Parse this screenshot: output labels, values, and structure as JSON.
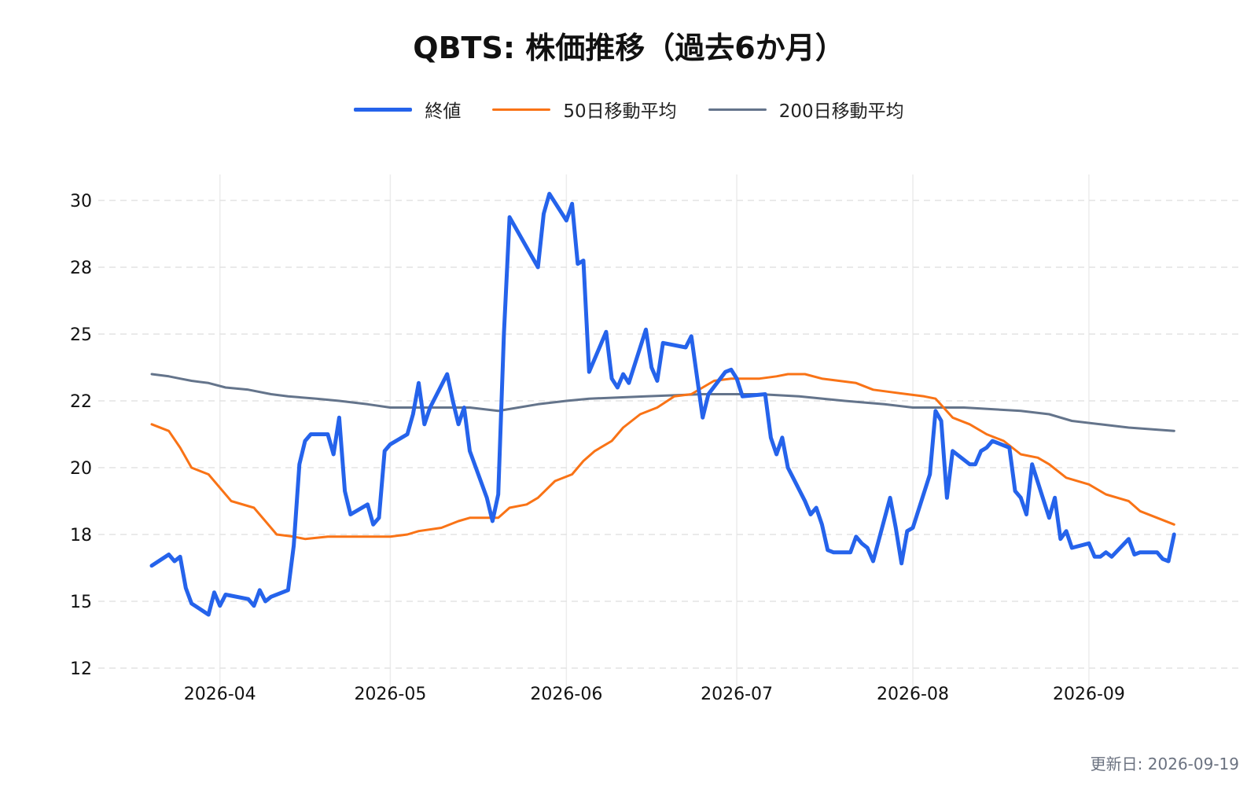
{
  "chart_data": {
    "type": "line",
    "title": "QBTS: 株価推移（過去6か月）",
    "xlabel": "",
    "ylabel": "",
    "x_tick_labels": [
      "2026-04",
      "2026-05",
      "2026-06",
      "2026-07",
      "2026-08",
      "2026-09"
    ],
    "x_ticks": [
      "2026-04-01",
      "2026-05-01",
      "2026-06-01",
      "2026-07-01",
      "2026-08-01",
      "2026-09-01"
    ],
    "x_range": [
      "2026-03-20",
      "2026-09-19"
    ],
    "y_ticks": [
      12,
      15,
      18,
      20,
      22,
      25,
      28,
      30
    ],
    "y_tick_labels": [
      "12",
      "15",
      "18",
      "20",
      "22",
      "25",
      "28",
      "30"
    ],
    "ylim": [
      12,
      30
    ],
    "grid": true,
    "legend": "top",
    "series": [
      {
        "name": "終値",
        "color": "#2563eb",
        "points": [
          [
            "2026-03-20",
            16.6
          ],
          [
            "2026-03-23",
            17.1
          ],
          [
            "2026-03-24",
            16.8
          ],
          [
            "2026-03-25",
            17.0
          ],
          [
            "2026-03-26",
            15.6
          ],
          [
            "2026-03-27",
            14.9
          ],
          [
            "2026-03-30",
            14.4
          ],
          [
            "2026-03-31",
            15.4
          ],
          [
            "2026-04-01",
            14.8
          ],
          [
            "2026-04-02",
            15.3
          ],
          [
            "2026-04-06",
            15.1
          ],
          [
            "2026-04-07",
            14.8
          ],
          [
            "2026-04-08",
            15.5
          ],
          [
            "2026-04-09",
            15.0
          ],
          [
            "2026-04-10",
            15.2
          ],
          [
            "2026-04-13",
            15.5
          ],
          [
            "2026-04-14",
            17.5
          ],
          [
            "2026-04-15",
            20.1
          ],
          [
            "2026-04-16",
            20.8
          ],
          [
            "2026-04-17",
            21.0
          ],
          [
            "2026-04-20",
            21.0
          ],
          [
            "2026-04-21",
            20.4
          ],
          [
            "2026-04-22",
            21.5
          ],
          [
            "2026-04-23",
            19.3
          ],
          [
            "2026-04-24",
            18.6
          ],
          [
            "2026-04-27",
            18.9
          ],
          [
            "2026-04-28",
            18.3
          ],
          [
            "2026-04-29",
            18.5
          ],
          [
            "2026-04-30",
            20.5
          ],
          [
            "2026-05-01",
            20.7
          ],
          [
            "2026-05-04",
            21.0
          ],
          [
            "2026-05-05",
            21.6
          ],
          [
            "2026-05-06",
            22.8
          ],
          [
            "2026-05-07",
            21.3
          ],
          [
            "2026-05-08",
            21.8
          ],
          [
            "2026-05-11",
            23.2
          ],
          [
            "2026-05-12",
            22.0
          ],
          [
            "2026-05-13",
            21.3
          ],
          [
            "2026-05-14",
            21.8
          ],
          [
            "2026-05-15",
            20.5
          ],
          [
            "2026-05-18",
            19.1
          ],
          [
            "2026-05-19",
            18.4
          ],
          [
            "2026-05-20",
            19.2
          ],
          [
            "2026-05-21",
            25.0
          ],
          [
            "2026-05-22",
            29.5
          ],
          [
            "2026-05-27",
            28.0
          ],
          [
            "2026-05-28",
            29.6
          ],
          [
            "2026-05-29",
            30.2
          ],
          [
            "2026-06-01",
            29.4
          ],
          [
            "2026-06-02",
            29.9
          ],
          [
            "2026-06-03",
            28.1
          ],
          [
            "2026-06-04",
            28.2
          ],
          [
            "2026-06-05",
            23.3
          ],
          [
            "2026-06-08",
            25.1
          ],
          [
            "2026-06-09",
            23.0
          ],
          [
            "2026-06-10",
            22.6
          ],
          [
            "2026-06-11",
            23.2
          ],
          [
            "2026-06-12",
            22.8
          ],
          [
            "2026-06-15",
            25.2
          ],
          [
            "2026-06-16",
            23.5
          ],
          [
            "2026-06-17",
            22.9
          ],
          [
            "2026-06-18",
            24.6
          ],
          [
            "2026-06-22",
            24.4
          ],
          [
            "2026-06-23",
            24.9
          ],
          [
            "2026-06-25",
            21.5
          ],
          [
            "2026-06-26",
            22.3
          ],
          [
            "2026-06-29",
            23.3
          ],
          [
            "2026-06-30",
            23.4
          ],
          [
            "2026-07-01",
            23.0
          ],
          [
            "2026-07-02",
            22.2
          ],
          [
            "2026-07-06",
            22.3
          ],
          [
            "2026-07-07",
            20.9
          ],
          [
            "2026-07-08",
            20.4
          ],
          [
            "2026-07-09",
            20.9
          ],
          [
            "2026-07-10",
            20.0
          ],
          [
            "2026-07-13",
            19.0
          ],
          [
            "2026-07-14",
            18.6
          ],
          [
            "2026-07-15",
            18.8
          ],
          [
            "2026-07-16",
            18.3
          ],
          [
            "2026-07-17",
            17.3
          ],
          [
            "2026-07-18",
            17.2
          ],
          [
            "2026-07-21",
            17.2
          ],
          [
            "2026-07-22",
            17.9
          ],
          [
            "2026-07-23",
            17.6
          ],
          [
            "2026-07-24",
            17.4
          ],
          [
            "2026-07-25",
            16.8
          ],
          [
            "2026-07-28",
            19.1
          ],
          [
            "2026-07-29",
            18.2
          ],
          [
            "2026-07-30",
            16.7
          ],
          [
            "2026-07-31",
            18.1
          ],
          [
            "2026-08-01",
            18.2
          ],
          [
            "2026-08-04",
            19.8
          ],
          [
            "2026-08-05",
            21.7
          ],
          [
            "2026-08-06",
            21.4
          ],
          [
            "2026-08-07",
            19.1
          ],
          [
            "2026-08-08",
            20.5
          ],
          [
            "2026-08-11",
            20.1
          ],
          [
            "2026-08-12",
            20.1
          ],
          [
            "2026-08-13",
            20.5
          ],
          [
            "2026-08-14",
            20.6
          ],
          [
            "2026-08-15",
            20.8
          ],
          [
            "2026-08-18",
            20.6
          ],
          [
            "2026-08-19",
            19.3
          ],
          [
            "2026-08-20",
            19.1
          ],
          [
            "2026-08-21",
            18.6
          ],
          [
            "2026-08-22",
            20.1
          ],
          [
            "2026-08-25",
            18.5
          ],
          [
            "2026-08-26",
            19.1
          ],
          [
            "2026-08-27",
            17.8
          ],
          [
            "2026-08-28",
            18.1
          ],
          [
            "2026-08-29",
            17.4
          ],
          [
            "2026-09-01",
            17.6
          ],
          [
            "2026-09-02",
            17.0
          ],
          [
            "2026-09-03",
            17.0
          ],
          [
            "2026-09-04",
            17.2
          ],
          [
            "2026-09-05",
            17.0
          ],
          [
            "2026-09-08",
            17.8
          ],
          [
            "2026-09-09",
            17.1
          ],
          [
            "2026-09-10",
            17.2
          ],
          [
            "2026-09-13",
            17.2
          ],
          [
            "2026-09-14",
            16.9
          ],
          [
            "2026-09-15",
            16.8
          ],
          [
            "2026-09-16",
            18.0
          ]
        ]
      },
      {
        "name": "50日移動平均",
        "color": "#f97316",
        "points": [
          [
            "2026-03-20",
            21.3
          ],
          [
            "2026-03-23",
            21.1
          ],
          [
            "2026-03-25",
            20.6
          ],
          [
            "2026-03-27",
            20.0
          ],
          [
            "2026-03-30",
            19.8
          ],
          [
            "2026-04-03",
            19.0
          ],
          [
            "2026-04-07",
            18.8
          ],
          [
            "2026-04-09",
            18.4
          ],
          [
            "2026-04-11",
            18.0
          ],
          [
            "2026-04-14",
            17.9
          ],
          [
            "2026-04-16",
            17.8
          ],
          [
            "2026-04-20",
            17.9
          ],
          [
            "2026-04-24",
            17.9
          ],
          [
            "2026-04-28",
            17.9
          ],
          [
            "2026-05-01",
            17.9
          ],
          [
            "2026-05-04",
            18.0
          ],
          [
            "2026-05-06",
            18.1
          ],
          [
            "2026-05-10",
            18.2
          ],
          [
            "2026-05-13",
            18.4
          ],
          [
            "2026-05-15",
            18.5
          ],
          [
            "2026-05-19",
            18.5
          ],
          [
            "2026-05-20",
            18.5
          ],
          [
            "2026-05-22",
            18.8
          ],
          [
            "2026-05-25",
            18.9
          ],
          [
            "2026-05-27",
            19.1
          ],
          [
            "2026-05-30",
            19.6
          ],
          [
            "2026-06-02",
            19.8
          ],
          [
            "2026-06-04",
            20.2
          ],
          [
            "2026-06-06",
            20.5
          ],
          [
            "2026-06-09",
            20.8
          ],
          [
            "2026-06-11",
            21.2
          ],
          [
            "2026-06-14",
            21.6
          ],
          [
            "2026-06-17",
            21.8
          ],
          [
            "2026-06-20",
            22.2
          ],
          [
            "2026-06-23",
            22.3
          ],
          [
            "2026-06-25",
            22.6
          ],
          [
            "2026-06-27",
            22.9
          ],
          [
            "2026-06-30",
            23.0
          ],
          [
            "2026-07-02",
            23.0
          ],
          [
            "2026-07-05",
            23.0
          ],
          [
            "2026-07-08",
            23.1
          ],
          [
            "2026-07-10",
            23.2
          ],
          [
            "2026-07-13",
            23.2
          ],
          [
            "2026-07-16",
            23.0
          ],
          [
            "2026-07-19",
            22.9
          ],
          [
            "2026-07-22",
            22.8
          ],
          [
            "2026-07-25",
            22.5
          ],
          [
            "2026-07-28",
            22.4
          ],
          [
            "2026-07-31",
            22.3
          ],
          [
            "2026-08-03",
            22.2
          ],
          [
            "2026-08-05",
            22.1
          ],
          [
            "2026-08-08",
            21.5
          ],
          [
            "2026-08-11",
            21.3
          ],
          [
            "2026-08-14",
            21.0
          ],
          [
            "2026-08-17",
            20.8
          ],
          [
            "2026-08-20",
            20.4
          ],
          [
            "2026-08-23",
            20.3
          ],
          [
            "2026-08-25",
            20.1
          ],
          [
            "2026-08-28",
            19.7
          ],
          [
            "2026-09-01",
            19.5
          ],
          [
            "2026-09-04",
            19.2
          ],
          [
            "2026-09-08",
            19.0
          ],
          [
            "2026-09-10",
            18.7
          ],
          [
            "2026-09-13",
            18.5
          ],
          [
            "2026-09-16",
            18.3
          ]
        ]
      },
      {
        "name": "200日移動平均",
        "color": "#64748b",
        "points": [
          [
            "2026-03-20",
            23.2
          ],
          [
            "2026-03-23",
            23.1
          ],
          [
            "2026-03-25",
            23.0
          ],
          [
            "2026-03-27",
            22.9
          ],
          [
            "2026-03-30",
            22.8
          ],
          [
            "2026-04-02",
            22.6
          ],
          [
            "2026-04-06",
            22.5
          ],
          [
            "2026-04-10",
            22.3
          ],
          [
            "2026-04-13",
            22.2
          ],
          [
            "2026-04-18",
            22.1
          ],
          [
            "2026-04-22",
            22.0
          ],
          [
            "2026-04-27",
            21.9
          ],
          [
            "2026-05-01",
            21.8
          ],
          [
            "2026-05-08",
            21.8
          ],
          [
            "2026-05-15",
            21.8
          ],
          [
            "2026-05-20",
            21.7
          ],
          [
            "2026-05-27",
            21.9
          ],
          [
            "2026-06-01",
            22.0
          ],
          [
            "2026-06-05",
            22.1
          ],
          [
            "2026-06-15",
            22.2
          ],
          [
            "2026-06-25",
            22.3
          ],
          [
            "2026-07-05",
            22.3
          ],
          [
            "2026-07-12",
            22.2
          ],
          [
            "2026-07-20",
            22.0
          ],
          [
            "2026-07-27",
            21.9
          ],
          [
            "2026-08-01",
            21.8
          ],
          [
            "2026-08-10",
            21.8
          ],
          [
            "2026-08-20",
            21.7
          ],
          [
            "2026-08-25",
            21.6
          ],
          [
            "2026-08-29",
            21.4
          ],
          [
            "2026-09-03",
            21.3
          ],
          [
            "2026-09-08",
            21.2
          ],
          [
            "2026-09-16",
            21.1
          ]
        ]
      }
    ]
  },
  "footer": {
    "updated": "更新日: 2026-09-19"
  }
}
